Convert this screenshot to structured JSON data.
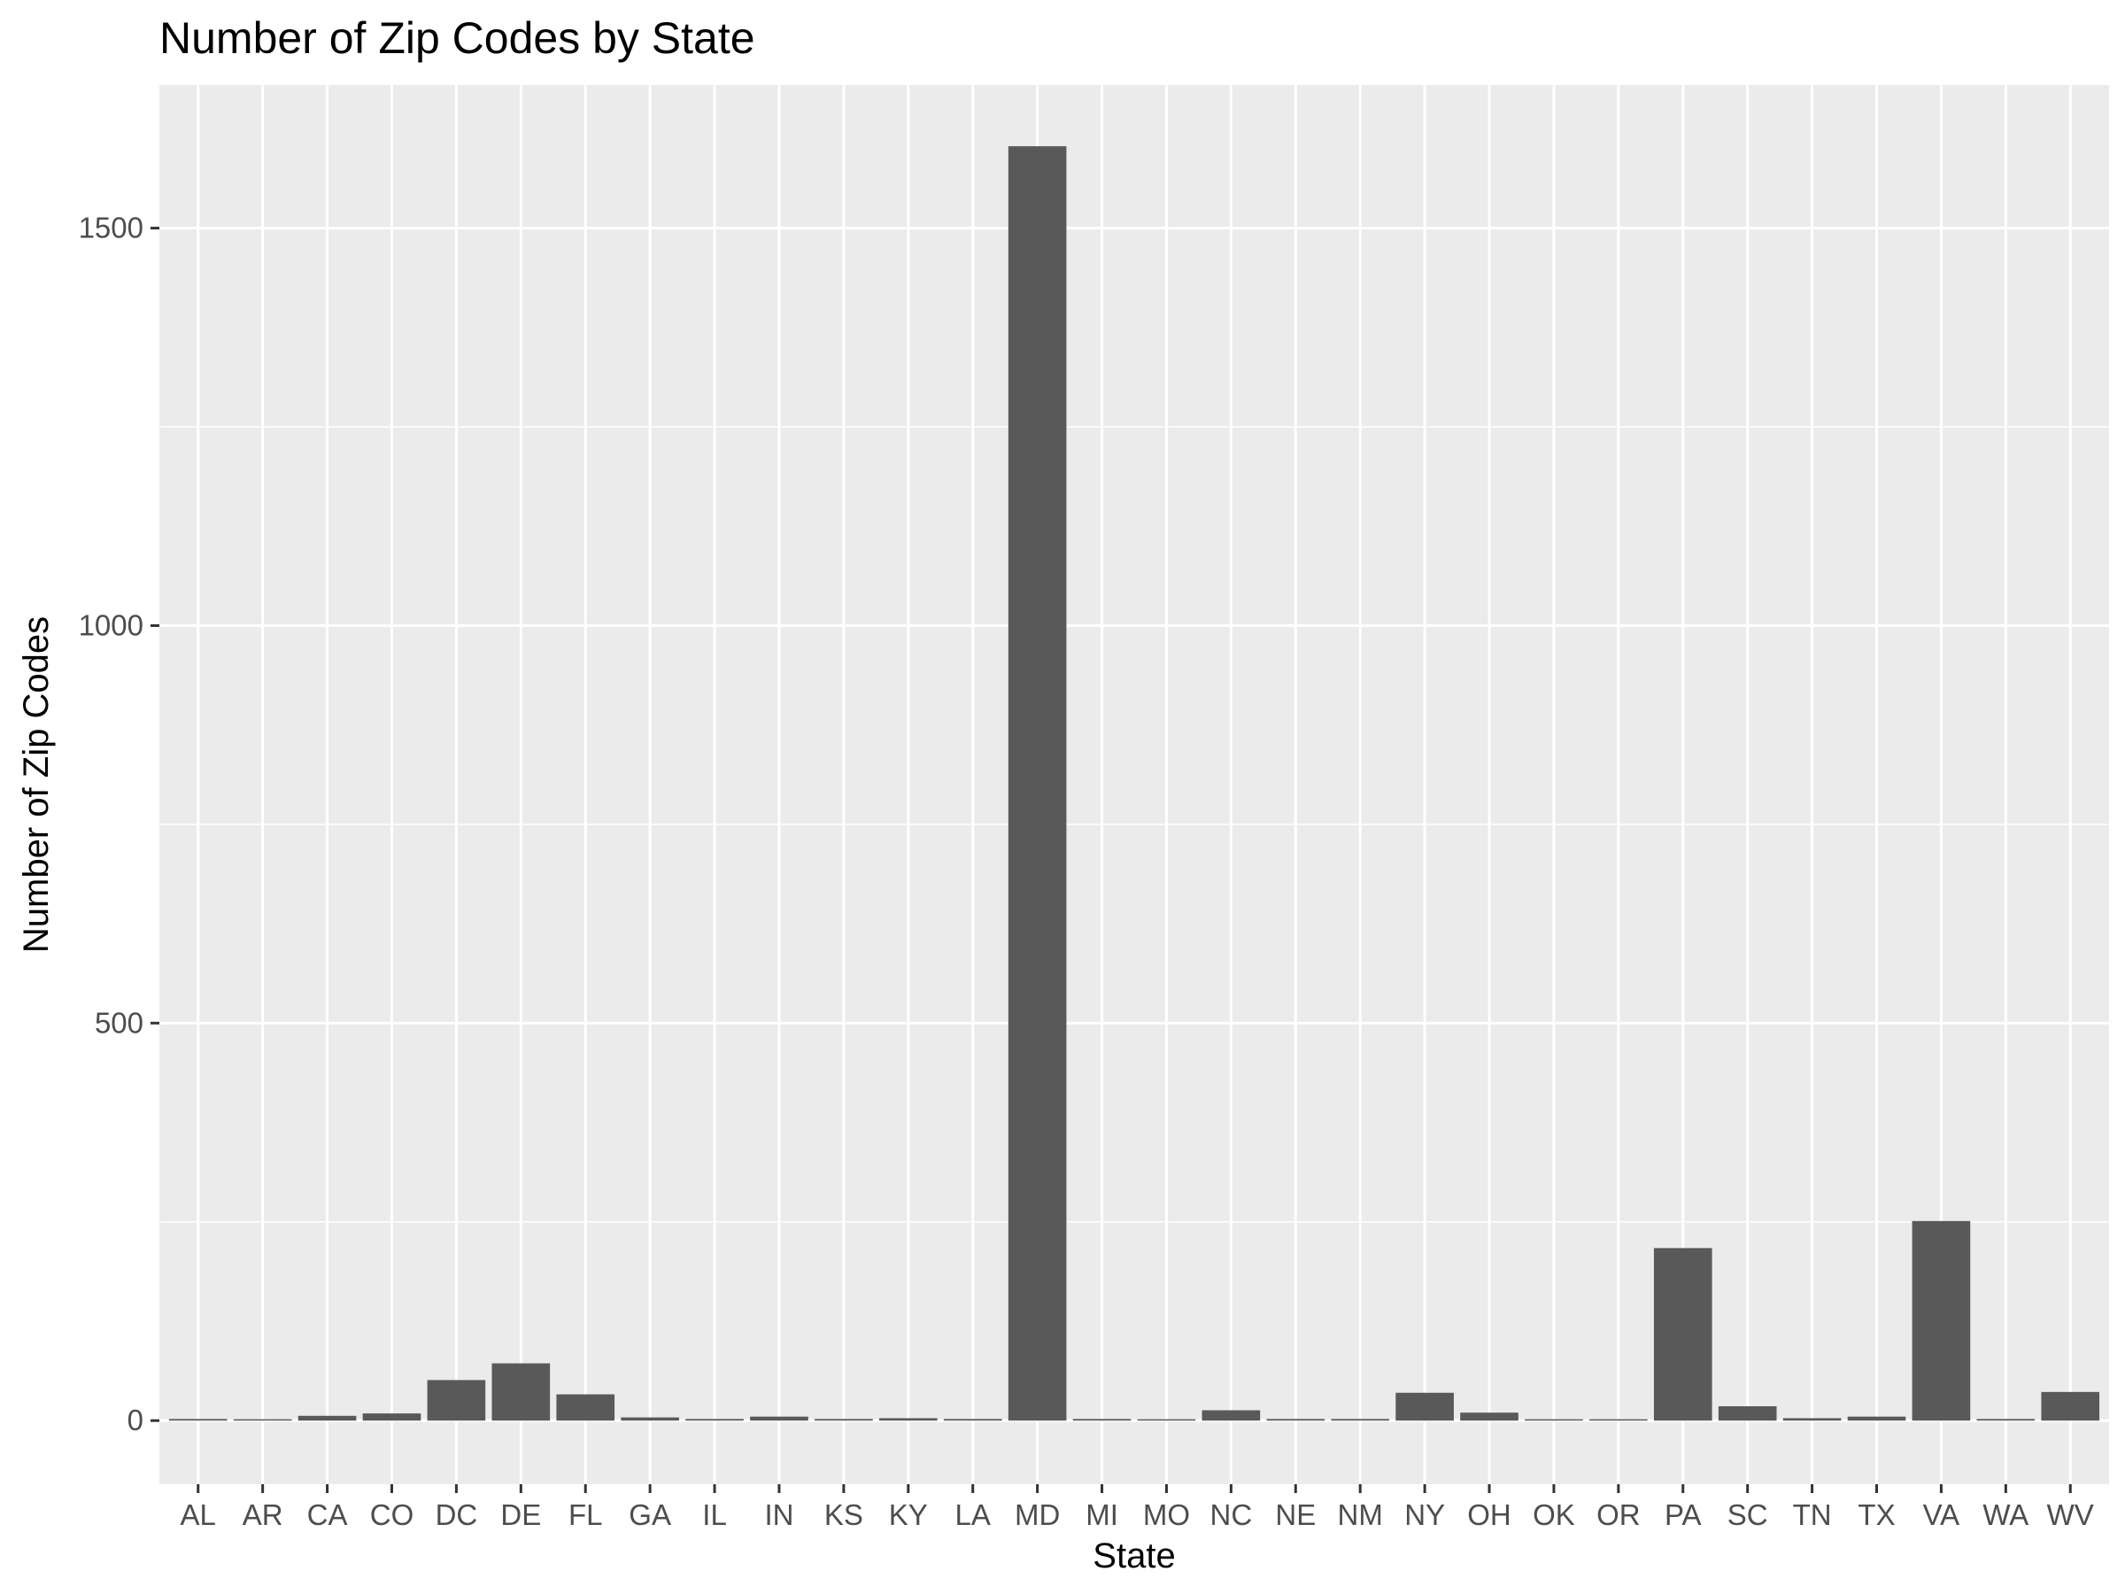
{
  "chart_data": {
    "type": "bar",
    "title": "Number of Zip Codes by State",
    "xlabel": "State",
    "ylabel": "Number of Zip Codes",
    "categories": [
      "AL",
      "AR",
      "CA",
      "CO",
      "DC",
      "DE",
      "FL",
      "GA",
      "IL",
      "IN",
      "KS",
      "KY",
      "LA",
      "MD",
      "MI",
      "MO",
      "NC",
      "NE",
      "NM",
      "NY",
      "OH",
      "OK",
      "OR",
      "PA",
      "SC",
      "TN",
      "TX",
      "VA",
      "WA",
      "WV"
    ],
    "values": [
      2,
      1,
      6,
      9,
      51,
      72,
      33,
      4,
      2,
      5,
      2,
      3,
      2,
      1603,
      2,
      1,
      13,
      2,
      2,
      35,
      10,
      1,
      1,
      217,
      18,
      3,
      5,
      251,
      2,
      36
    ],
    "ylim": [
      -80,
      1680
    ],
    "yticks": [
      0,
      500,
      1000,
      1500
    ],
    "grid": true,
    "legend": "none",
    "colors": {
      "panel": "#ebebeb",
      "grid": "#ffffff",
      "bar": "#595959",
      "tick": "#333333"
    }
  }
}
